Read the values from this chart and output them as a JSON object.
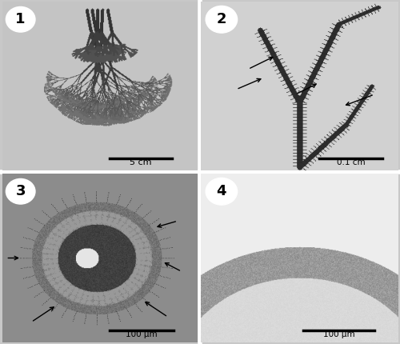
{
  "panel1_bg": "#c2c2c2",
  "panel2_bg": "#c8c8c8",
  "panel3_bg": "#a0a0a0",
  "panel4_bg": "#e8e8e8",
  "outer_bg": "#c8c8c8",
  "border_color": "#ffffff",
  "border_lw": 3,
  "fig_circle_color": "#ffffff",
  "scale_bar_color": "#000000",
  "arrow_color": "#000000",
  "scale1_text": "5 cm",
  "scale2_text": "0.1 cm",
  "scale3_text": "100 μm",
  "scale4_text": "100 μm",
  "fig_labels": [
    "1",
    "2",
    "3",
    "4"
  ]
}
